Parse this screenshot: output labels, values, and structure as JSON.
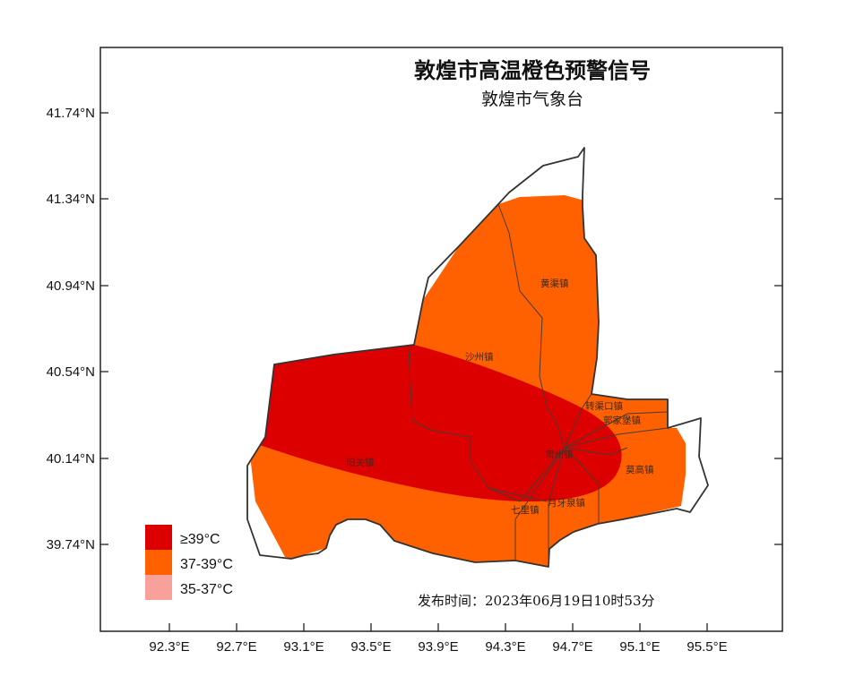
{
  "map": {
    "title": "敦煌市高温橙色预警信号",
    "subtitle": "敦煌市气象台",
    "issue_time": "发布时间：2023年06月19日10时53分",
    "y_ticks": [
      "41.74°N",
      "41.34°N",
      "40.94°N",
      "40.54°N",
      "40.14°N",
      "39.74°N"
    ],
    "x_ticks": [
      "92.3°E",
      "92.7°E",
      "93.1°E",
      "93.5°E",
      "93.9°E",
      "94.3°E",
      "94.7°E",
      "95.1°E",
      "95.5°E"
    ],
    "legend": [
      {
        "label": "≥39°C",
        "color": "#dd0000"
      },
      {
        "label": "37-39°C",
        "color": "#ff6100"
      },
      {
        "label": "35-37°C",
        "color": "#f7a19a"
      }
    ],
    "towns": [
      {
        "name": "黄渠镇"
      },
      {
        "name": "沙州镇"
      },
      {
        "name": "转渠口镇"
      },
      {
        "name": "郭家堡镇"
      },
      {
        "name": "阳关镇"
      },
      {
        "name": "莫高镇"
      },
      {
        "name": "月牙泉镇"
      },
      {
        "name": "七里镇"
      },
      {
        "name": "肃州镇"
      }
    ],
    "colors": {
      "extreme": "#dd0000",
      "high": "#ff6100",
      "boundary": "#333333"
    }
  }
}
